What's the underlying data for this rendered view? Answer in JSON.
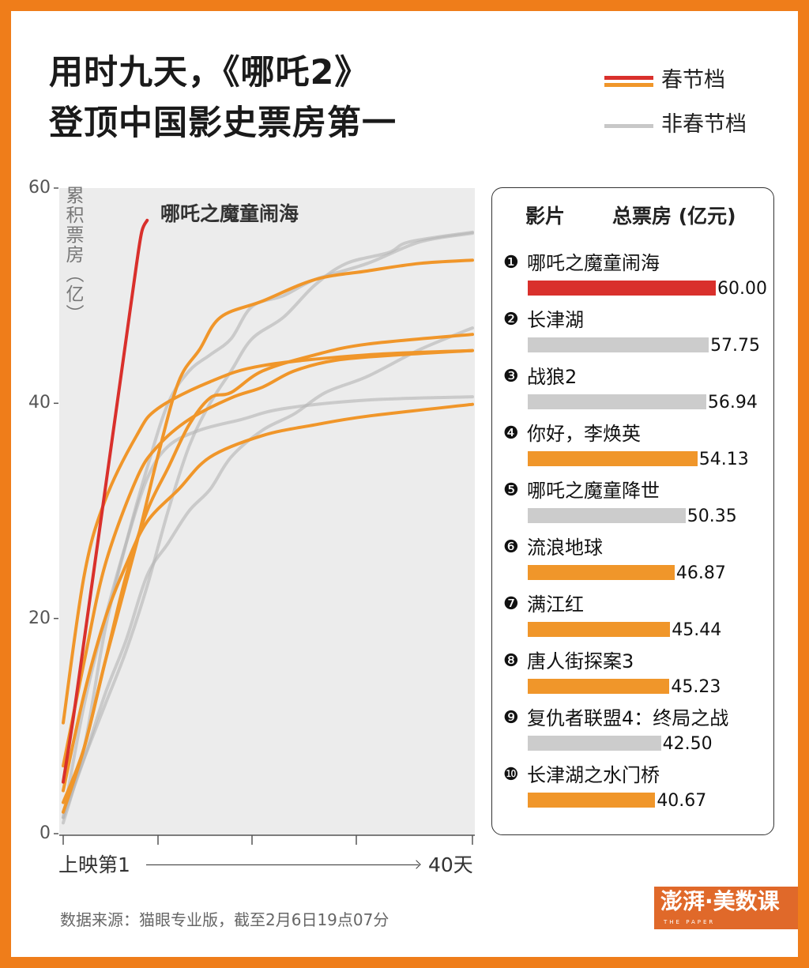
{
  "title": {
    "line1": "用时九天，《哪吒2》",
    "line2": "登顶中国影史票房第一"
  },
  "legend": [
    {
      "label": "春节档",
      "colors": [
        "#d9302c",
        "#f0962a"
      ]
    },
    {
      "label": "非春节档",
      "colors": [
        "#c8c8c8"
      ]
    }
  ],
  "colors": {
    "border": "#ef7d1a",
    "red": "#d9302c",
    "orange": "#f0962a",
    "gray": "#b4b4b4",
    "plot_bg": "#ececec"
  },
  "chart_data": [
    {
      "type": "line",
      "ylabel": "累积票房（亿）",
      "ylim": [
        0,
        60
      ],
      "yticks": [
        0,
        20,
        40,
        60
      ],
      "xlim": [
        1,
        40
      ],
      "xlabel_start": "上映第1",
      "xlabel_end": "40天",
      "grid": false,
      "annotation": "哪吒之魔童闹海",
      "series": [
        {
          "name": "哪吒之魔童闹海",
          "group": "red",
          "points": [
            [
              1,
              4.8
            ],
            [
              2,
              11
            ],
            [
              3,
              18
            ],
            [
              4,
              25
            ],
            [
              5,
              32
            ],
            [
              6,
              39
            ],
            [
              7,
              46
            ],
            [
              8,
              53
            ],
            [
              8.5,
              56
            ],
            [
              9,
              57
            ]
          ]
        },
        {
          "group": "gray",
          "points": [
            [
              1,
              2
            ],
            [
              3,
              7
            ],
            [
              5,
              12
            ],
            [
              7,
              17
            ],
            [
              9,
              23
            ],
            [
              11,
              30
            ],
            [
              13,
              36
            ],
            [
              15,
              40
            ],
            [
              17,
              43
            ],
            [
              19,
              46
            ],
            [
              22,
              48
            ],
            [
              25,
              51
            ],
            [
              28,
              53
            ],
            [
              32,
              54
            ],
            [
              34,
              55
            ],
            [
              40,
              55.9
            ]
          ]
        },
        {
          "group": "gray",
          "points": [
            [
              1,
              1
            ],
            [
              3,
              8
            ],
            [
              5,
              19
            ],
            [
              7,
              27
            ],
            [
              9,
              34
            ],
            [
              11,
              40
            ],
            [
              13,
              43
            ],
            [
              15,
              44.5
            ],
            [
              17,
              46
            ],
            [
              19,
              49
            ],
            [
              22,
              50
            ],
            [
              25,
              51.5
            ],
            [
              30,
              53
            ],
            [
              35,
              55
            ],
            [
              40,
              55.8
            ]
          ]
        },
        {
          "group": "gray",
          "points": [
            [
              1,
              1.5
            ],
            [
              3,
              7
            ],
            [
              5,
              13
            ],
            [
              7,
              18
            ],
            [
              9,
              24
            ],
            [
              11,
              27
            ],
            [
              13,
              30
            ],
            [
              15,
              32
            ],
            [
              17,
              35
            ],
            [
              20,
              37.5
            ],
            [
              23,
              39
            ],
            [
              26,
              41
            ],
            [
              30,
              42.5
            ],
            [
              35,
              45
            ],
            [
              40,
              47
            ]
          ]
        },
        {
          "group": "gray",
          "points": [
            [
              1,
              1.5
            ],
            [
              3,
              12
            ],
            [
              5,
              20
            ],
            [
              7,
              27
            ],
            [
              9,
              33
            ],
            [
              11,
              36
            ],
            [
              14,
              37.5
            ],
            [
              18,
              38.5
            ],
            [
              22,
              39.5
            ],
            [
              30,
              40.3
            ],
            [
              40,
              40.6
            ]
          ]
        },
        {
          "group": "orange",
          "points": [
            [
              1,
              10.3
            ],
            [
              3,
              24
            ],
            [
              5,
              31
            ],
            [
              8,
              37
            ],
            [
              10,
              39.5
            ],
            [
              15,
              42
            ],
            [
              20,
              43.5
            ],
            [
              30,
              44.5
            ],
            [
              40,
              44.9
            ]
          ]
        },
        {
          "group": "orange",
          "points": [
            [
              1,
              2.9
            ],
            [
              3,
              8
            ],
            [
              5,
              16
            ],
            [
              8,
              27
            ],
            [
              10,
              35
            ],
            [
              12,
              42
            ],
            [
              14,
              45
            ],
            [
              16,
              48
            ],
            [
              20,
              49.5
            ],
            [
              25,
              51.5
            ],
            [
              30,
              52.3
            ],
            [
              35,
              53
            ],
            [
              40,
              53.3
            ]
          ]
        },
        {
          "group": "orange",
          "points": [
            [
              1,
              6.3
            ],
            [
              3,
              16
            ],
            [
              5,
              25
            ],
            [
              8,
              33
            ],
            [
              10,
              36
            ],
            [
              13,
              38.5
            ],
            [
              17,
              40.5
            ],
            [
              20,
              41.5
            ],
            [
              23,
              43
            ],
            [
              27,
              44
            ],
            [
              33,
              44.5
            ],
            [
              40,
              44.9
            ]
          ]
        },
        {
          "group": "orange",
          "points": [
            [
              1,
              2
            ],
            [
              3,
              8
            ],
            [
              5,
              16
            ],
            [
              7,
              24
            ],
            [
              9,
              30
            ],
            [
              11,
              34
            ],
            [
              13,
              38
            ],
            [
              15,
              40.5
            ],
            [
              17,
              41
            ],
            [
              20,
              43
            ],
            [
              25,
              44.5
            ],
            [
              30,
              45.5
            ],
            [
              40,
              46.4
            ]
          ]
        },
        {
          "group": "orange",
          "points": [
            [
              1,
              4
            ],
            [
              3,
              13
            ],
            [
              5,
              20
            ],
            [
              7,
              25
            ],
            [
              9,
              29
            ],
            [
              12,
              32
            ],
            [
              15,
              35
            ],
            [
              20,
              37
            ],
            [
              25,
              38
            ],
            [
              30,
              38.8
            ],
            [
              40,
              39.9
            ]
          ]
        }
      ]
    },
    {
      "type": "bar",
      "header": {
        "film": "影片",
        "total": "总票房 (亿元)"
      },
      "rows": [
        {
          "rank": "❶",
          "name": "哪吒之魔童闹海",
          "value": 60.0,
          "label": "60.00",
          "group": "red"
        },
        {
          "rank": "❷",
          "name": "长津湖",
          "value": 57.75,
          "label": "57.75",
          "group": "gray"
        },
        {
          "rank": "❸",
          "name": "战狼2",
          "value": 56.94,
          "label": "56.94",
          "group": "gray"
        },
        {
          "rank": "❹",
          "name": "你好，李焕英",
          "value": 54.13,
          "label": "54.13",
          "group": "orange"
        },
        {
          "rank": "❺",
          "name": "哪吒之魔童降世",
          "value": 50.35,
          "label": "50.35",
          "group": "gray"
        },
        {
          "rank": "❻",
          "name": "流浪地球",
          "value": 46.87,
          "label": "46.87",
          "group": "orange"
        },
        {
          "rank": "❼",
          "name": "满江红",
          "value": 45.44,
          "label": "45.44",
          "group": "orange"
        },
        {
          "rank": "❽",
          "name": "唐人街探案3",
          "value": 45.23,
          "label": "45.23",
          "group": "orange"
        },
        {
          "rank": "❾",
          "name": "复仇者联盟4：终局之战",
          "value": 42.5,
          "label": "42.50",
          "group": "gray"
        },
        {
          "rank": "❿",
          "name": "长津湖之水门桥",
          "value": 40.67,
          "label": "40.67",
          "group": "orange"
        }
      ]
    }
  ],
  "footer": {
    "source": "数据来源：猫眼专业版，截至2月6日19点07分",
    "logo": "澎湃·美数课",
    "logo_sub": "THE PAPER"
  }
}
